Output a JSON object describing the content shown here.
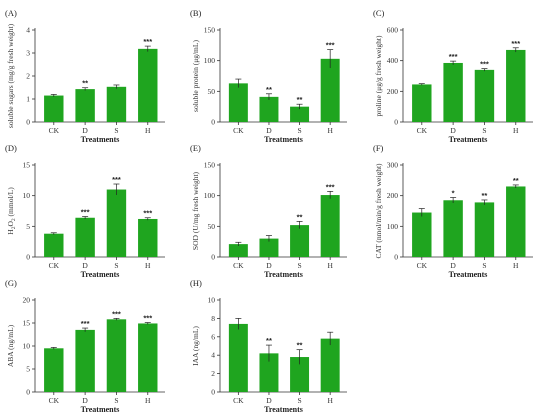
{
  "bar_color": "#1fa51f",
  "chart_data": [
    {
      "type": "bar",
      "panel": "(A)",
      "ylabel": "soluble sugars (mg/g fresh weight)",
      "xlabel": "Treatments",
      "categories": [
        "CK",
        "D",
        "S",
        "H"
      ],
      "ylim": [
        0,
        4
      ],
      "yticks": [
        0,
        1,
        2,
        3,
        4
      ],
      "values": [
        1.15,
        1.43,
        1.53,
        3.18
      ],
      "errors": [
        0.05,
        0.06,
        0.08,
        0.12
      ],
      "significance": [
        "",
        "**",
        "",
        "***"
      ]
    },
    {
      "type": "bar",
      "panel": "(B)",
      "ylabel": "soluble protein (μg/mL)",
      "xlabel": "Treatments",
      "categories": [
        "CK",
        "D",
        "S",
        "H"
      ],
      "ylim": [
        0,
        150
      ],
      "yticks": [
        0,
        50,
        100,
        150
      ],
      "values": [
        63,
        41,
        25,
        103
      ],
      "errors": [
        7,
        5,
        4,
        15
      ],
      "significance": [
        "",
        "**",
        "**",
        "***"
      ]
    },
    {
      "type": "bar",
      "panel": "(C)",
      "ylabel": "proline (μg/g fresh weight)",
      "xlabel": "Treatments",
      "categories": [
        "CK",
        "D",
        "S",
        "H"
      ],
      "ylim": [
        0,
        600
      ],
      "yticks": [
        0,
        200,
        400,
        600
      ],
      "values": [
        245,
        385,
        340,
        470
      ],
      "errors": [
        5,
        12,
        8,
        14
      ],
      "significance": [
        "",
        "***",
        "***",
        "***"
      ]
    },
    {
      "type": "bar",
      "panel": "(D)",
      "ylabel": "H2O2 (mmol/L)",
      "ylabel_sub": true,
      "xlabel": "Treatments",
      "categories": [
        "CK",
        "D",
        "S",
        "H"
      ],
      "ylim": [
        0,
        15
      ],
      "yticks": [
        0,
        5,
        10,
        15
      ],
      "values": [
        3.8,
        6.4,
        11.0,
        6.2
      ],
      "errors": [
        0.15,
        0.2,
        0.9,
        0.2
      ],
      "significance": [
        "",
        "***",
        "***",
        "***"
      ]
    },
    {
      "type": "bar",
      "panel": "(E)",
      "ylabel": "SOD (U/mg fresh weight)",
      "xlabel": "Treatments",
      "categories": [
        "CK",
        "D",
        "S",
        "H"
      ],
      "ylim": [
        0,
        150
      ],
      "yticks": [
        0,
        50,
        100,
        150
      ],
      "values": [
        21,
        30,
        52,
        101
      ],
      "errors": [
        3,
        5,
        6,
        6
      ],
      "significance": [
        "",
        "",
        "**",
        "***"
      ]
    },
    {
      "type": "bar",
      "panel": "(F)",
      "ylabel": "CAT (nmol/min/g fresh weight)",
      "xlabel": "Treatments",
      "categories": [
        "CK",
        "D",
        "S",
        "H"
      ],
      "ylim": [
        0,
        300
      ],
      "yticks": [
        0,
        100,
        200,
        300
      ],
      "values": [
        145,
        185,
        178,
        230
      ],
      "errors": [
        13,
        9,
        8,
        5
      ],
      "significance": [
        "",
        "*",
        "**",
        "**"
      ]
    },
    {
      "type": "bar",
      "panel": "(G)",
      "ylabel": "ABA (ng/mL)",
      "xlabel": "Treatments",
      "categories": [
        "CK",
        "D",
        "S",
        "H"
      ],
      "ylim": [
        0,
        20
      ],
      "yticks": [
        0,
        5,
        10,
        15,
        20
      ],
      "values": [
        9.5,
        13.5,
        15.8,
        14.9
      ],
      "errors": [
        0.2,
        0.4,
        0.2,
        0.2
      ],
      "significance": [
        "",
        "***",
        "***",
        "***"
      ]
    },
    {
      "type": "bar",
      "panel": "(H)",
      "ylabel": "IAA (ng/mL)",
      "xlabel": "Treatments",
      "categories": [
        "CK",
        "D",
        "S",
        "H"
      ],
      "ylim": [
        0,
        10
      ],
      "yticks": [
        0,
        2,
        4,
        6,
        8,
        10
      ],
      "values": [
        7.4,
        4.2,
        3.8,
        5.8
      ],
      "errors": [
        0.6,
        0.9,
        0.8,
        0.7
      ],
      "significance": [
        "",
        "**",
        "**",
        ""
      ]
    }
  ]
}
